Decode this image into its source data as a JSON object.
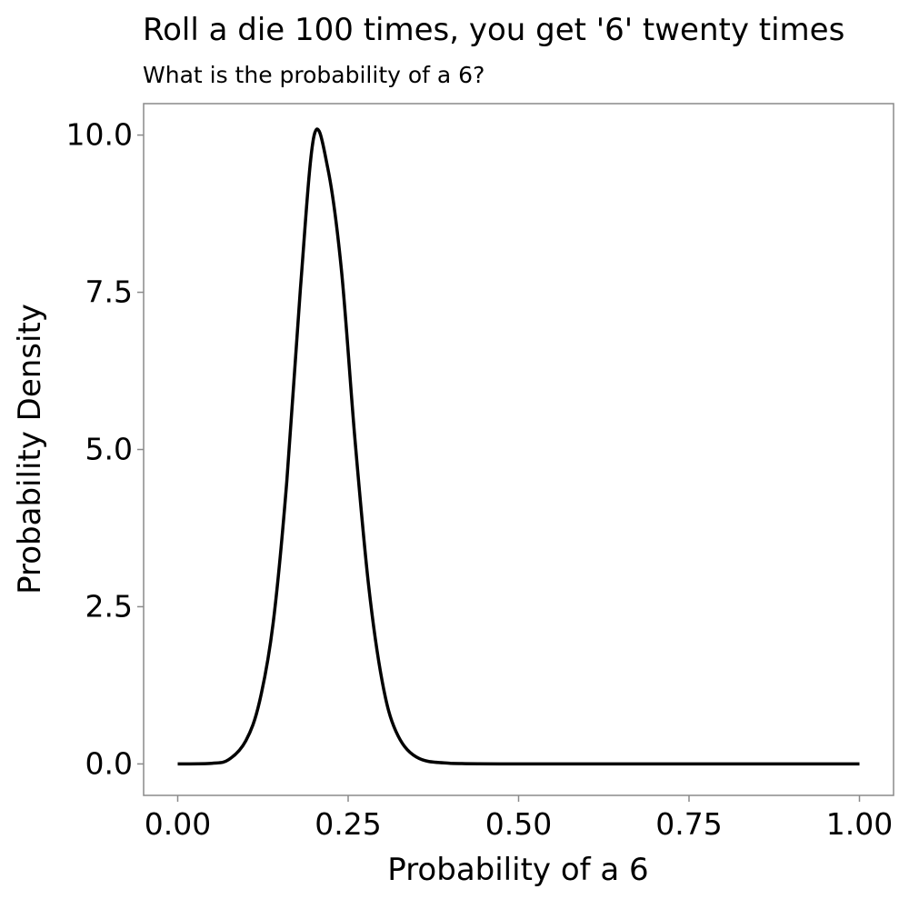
{
  "chart_data": {
    "type": "line",
    "title": "Roll a die 100 times, you get '6' twenty times",
    "subtitle": "What is the probability of a 6?",
    "xlabel": "Probability of a 6",
    "ylabel": "Probability Density",
    "xlim": [
      0,
      1
    ],
    "ylim": [
      -0.5,
      10.5
    ],
    "x_ticks": [
      "0.00",
      "0.25",
      "0.50",
      "0.75",
      "1.00"
    ],
    "y_ticks": [
      "0.0",
      "2.5",
      "5.0",
      "7.5",
      "10.0"
    ],
    "grid": false,
    "series": [
      {
        "color": "#000000",
        "x": [
          0.0,
          0.05,
          0.075,
          0.1,
          0.12,
          0.14,
          0.16,
          0.18,
          0.2,
          0.22,
          0.24,
          0.26,
          0.28,
          0.3,
          0.32,
          0.35,
          0.4,
          0.5,
          0.75,
          1.0
        ],
        "y": [
          0.0,
          0.01,
          0.07,
          0.37,
          0.99,
          2.24,
          4.49,
          7.56,
          9.99,
          9.48,
          7.87,
          5.16,
          2.84,
          1.31,
          0.52,
          0.11,
          0.01,
          0.0,
          0.0,
          0.0
        ]
      }
    ]
  }
}
